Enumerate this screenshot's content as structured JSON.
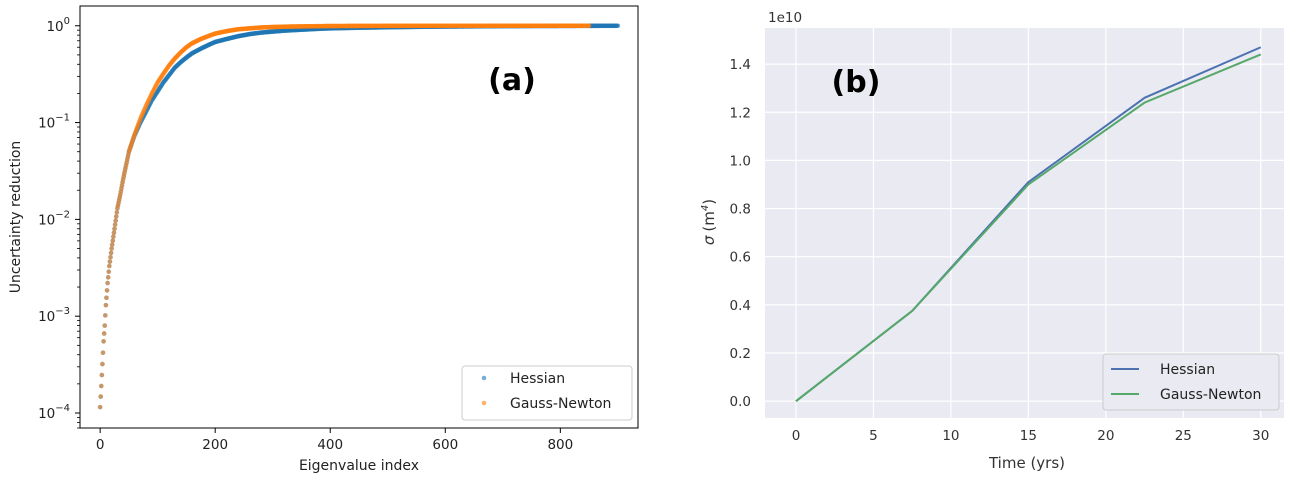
{
  "chart_data": [
    {
      "panel_label": "(a)",
      "type": "scatter",
      "xlabel": "Eigenvalue index",
      "ylabel": "Uncertainty reduction",
      "yscale": "log",
      "xlim": [
        -35,
        935
      ],
      "ylim": [
        7e-05,
        1.6
      ],
      "xticks": [
        0,
        200,
        400,
        600,
        800
      ],
      "yticks": [
        {
          "value": 0.0001,
          "base": "10",
          "exp": "−4"
        },
        {
          "value": 0.001,
          "base": "10",
          "exp": "−3"
        },
        {
          "value": 0.01,
          "base": "10",
          "exp": "−2"
        },
        {
          "value": 0.1,
          "base": "10",
          "exp": "−1"
        },
        {
          "value": 1,
          "base": "10",
          "exp": "0"
        }
      ],
      "grid": false,
      "legend_position": "bottom-right",
      "series": [
        {
          "name": "Hessian",
          "color": "#1f77b4",
          "x": [
            0,
            2,
            4,
            6,
            8,
            10,
            13,
            16,
            20,
            25,
            30,
            35,
            40,
            45,
            50,
            60,
            70,
            80,
            90,
            100,
            110,
            120,
            130,
            140,
            150,
            160,
            175,
            190,
            200,
            220,
            240,
            260,
            280,
            300,
            320,
            350,
            380,
            400,
            450,
            500,
            550,
            600,
            650,
            700,
            750,
            800,
            850,
            900
          ],
          "y": [
            0.000115,
            0.00019,
            0.00032,
            0.00055,
            0.0008,
            0.0013,
            0.0022,
            0.0033,
            0.005,
            0.008,
            0.013,
            0.018,
            0.026,
            0.036,
            0.05,
            0.074,
            0.1,
            0.13,
            0.17,
            0.21,
            0.26,
            0.31,
            0.37,
            0.42,
            0.47,
            0.52,
            0.58,
            0.64,
            0.68,
            0.73,
            0.78,
            0.82,
            0.85,
            0.87,
            0.89,
            0.91,
            0.93,
            0.94,
            0.955,
            0.965,
            0.975,
            0.982,
            0.987,
            0.991,
            0.994,
            0.996,
            0.998,
            1.0
          ]
        },
        {
          "name": "Gauss-Newton",
          "color": "#ff7f0e",
          "x": [
            0,
            2,
            4,
            6,
            8,
            10,
            13,
            16,
            20,
            25,
            30,
            35,
            40,
            45,
            50,
            60,
            70,
            80,
            90,
            100,
            110,
            120,
            130,
            140,
            150,
            160,
            175,
            190,
            200,
            220,
            240,
            260,
            280,
            300,
            320,
            350,
            380,
            400,
            450,
            500,
            550,
            600,
            650,
            700,
            750,
            800,
            850
          ],
          "y": [
            0.000115,
            0.00019,
            0.00032,
            0.00055,
            0.0008,
            0.0013,
            0.0022,
            0.0033,
            0.005,
            0.008,
            0.013,
            0.018,
            0.026,
            0.036,
            0.05,
            0.076,
            0.11,
            0.15,
            0.2,
            0.26,
            0.32,
            0.39,
            0.46,
            0.53,
            0.6,
            0.66,
            0.73,
            0.79,
            0.83,
            0.88,
            0.92,
            0.94,
            0.96,
            0.97,
            0.978,
            0.985,
            0.99,
            0.993,
            0.996,
            0.998,
            0.999,
            1.0,
            1.0,
            1.0,
            1.0,
            1.0,
            1.0
          ]
        }
      ]
    },
    {
      "panel_label": "(b)",
      "type": "line",
      "xlabel": "Time (yrs)",
      "ylabel_text": "σ",
      "ylabel_unit": "(m",
      "ylabel_exp": "4",
      "ylabel_close": ")",
      "offset_label": "1e10",
      "xlim": [
        -2,
        31.5
      ],
      "ylim": [
        -0.07,
        1.55
      ],
      "xticks": [
        0,
        5,
        10,
        15,
        20,
        25,
        30
      ],
      "yticks": [
        "0.0",
        "0.2",
        "0.4",
        "0.6",
        "0.8",
        "1.0",
        "1.2",
        "1.4"
      ],
      "ytick_values": [
        0.0,
        0.2,
        0.4,
        0.6,
        0.8,
        1.0,
        1.2,
        1.4
      ],
      "grid": true,
      "background": "#eaeaf2",
      "legend_position": "bottom-right",
      "series": [
        {
          "name": "Hessian",
          "color": "#4c72b0",
          "x": [
            0,
            7.5,
            15,
            22.5,
            30
          ],
          "y": [
            0.0,
            0.375,
            0.91,
            1.26,
            1.47
          ]
        },
        {
          "name": "Gauss-Newton",
          "color": "#55a868",
          "x": [
            0,
            7.5,
            15,
            22.5,
            30
          ],
          "y": [
            0.0,
            0.375,
            0.9,
            1.24,
            1.44
          ]
        }
      ]
    }
  ]
}
